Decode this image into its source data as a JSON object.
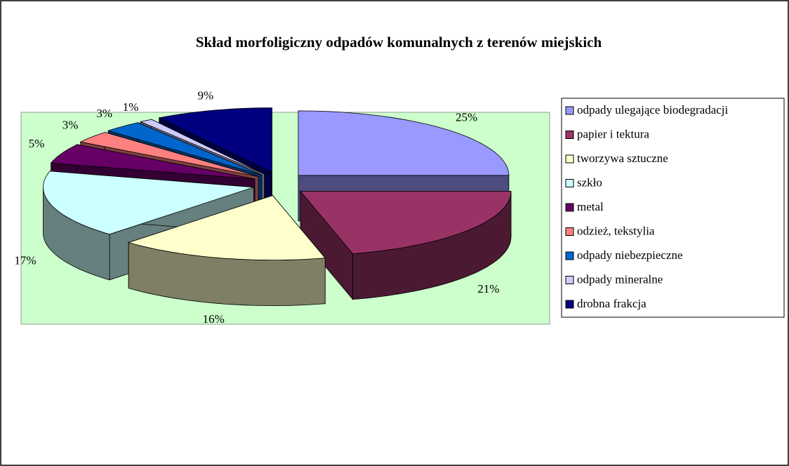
{
  "chart_data": {
    "type": "pie3d",
    "title": "Skład morfoligiczny odpadów komunalnych z terenów miejskich",
    "categories": [
      "odpady ulegające biodegradacji",
      "papier i tektura",
      "tworzywa sztuczne",
      "szkło",
      "metal",
      "odzież, tekstylia",
      "odpady niebezpieczne",
      "odpady mineralne",
      "drobna frakcja"
    ],
    "values": [
      25,
      21,
      16,
      17,
      5,
      3,
      3,
      1,
      9
    ],
    "value_labels": [
      "25%",
      "21%",
      "16%",
      "17%",
      "5%",
      "3%",
      "3%",
      "1%",
      "9%"
    ],
    "colors": [
      "#9999ff",
      "#993366",
      "#ffffcc",
      "#ccffff",
      "#660066",
      "#ff8080",
      "#0066cc",
      "#ccccff",
      "#000080"
    ],
    "legend": "right"
  }
}
